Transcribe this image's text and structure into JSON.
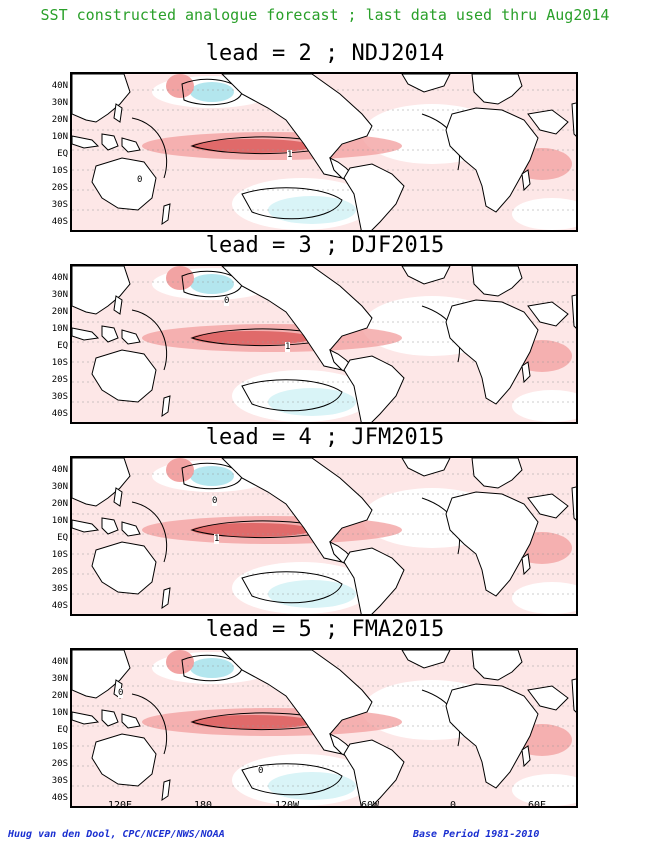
{
  "header": {
    "title": "SST constructed analogue forecast ; last data used thru Aug2014"
  },
  "panels": [
    {
      "title": "lead = 2 ; NDJ2014"
    },
    {
      "title": "lead = 3 ; DJF2015"
    },
    {
      "title": "lead = 4 ; JFM2015"
    },
    {
      "title": "lead = 5 ; FMA2015"
    }
  ],
  "latitude_labels": [
    "40N",
    "30N",
    "20N",
    "10N",
    "EQ",
    "10S",
    "20S",
    "30S",
    "40S"
  ],
  "longitude_labels": [
    "120E",
    "180",
    "120W",
    "60W",
    "0",
    "60E"
  ],
  "contour_labels": {
    "zero": "0",
    "one": "1"
  },
  "colors": {
    "header_text": "#2aa02a",
    "footer_text": "#1a2fd0",
    "warm_light": "#fbd3d3",
    "warm_medium": "#f2a3a3",
    "warm_strong": "#e06a6a",
    "cool_light": "#d9f4f7",
    "cool_medium": "#b3e6ee"
  },
  "footer": {
    "credit": "Huug van den Dool, CPC/NCEP/NWS/NOAA",
    "base_period": "Base Period 1981-2010"
  }
}
